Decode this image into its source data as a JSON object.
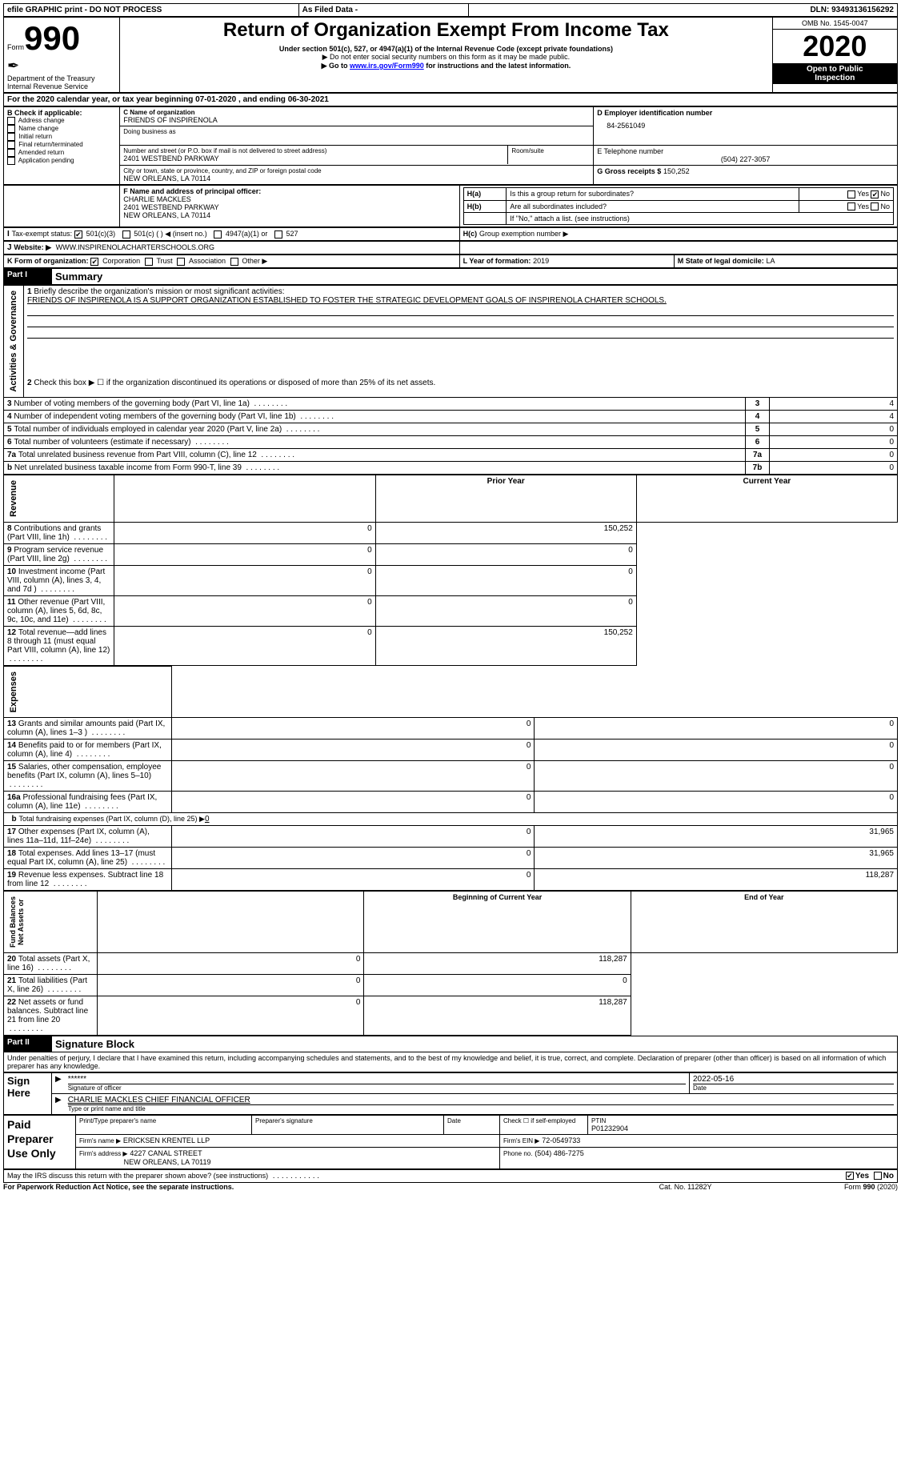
{
  "topbar": {
    "efile": "efile GRAPHIC print - DO NOT PROCESS",
    "asfiled": "As Filed Data -",
    "dln_label": "DLN:",
    "dln": "93493136156292"
  },
  "header": {
    "form_label": "Form",
    "form_no": "990",
    "dept": "Department of the Treasury\nInternal Revenue Service",
    "title": "Return of Organization Exempt From Income Tax",
    "sub1": "Under section 501(c), 527, or 4947(a)(1) of the Internal Revenue Code (except private foundations)",
    "sub2": "▶ Do not enter social security numbers on this form as it may be made public.",
    "sub3_pre": "▶ Go to ",
    "sub3_link": "www.irs.gov/Form990",
    "sub3_post": " for instructions and the latest information.",
    "omb": "OMB No. 1545-0047",
    "year": "2020",
    "inspect1": "Open to Public",
    "inspect2": "Inspection"
  },
  "A": {
    "text": "For the 2020 calendar year, or tax year beginning 07-01-2020   , and ending 06-30-2021"
  },
  "B": {
    "label": "B Check if applicable:",
    "items": [
      "Address change",
      "Name change",
      "Initial return",
      "Final return/terminated",
      "Amended return",
      "Application pending"
    ]
  },
  "C": {
    "name_label": "C Name of organization",
    "name": "FRIENDS OF INSPIRENOLA",
    "dba_label": "Doing business as",
    "addr_label": "Number and street (or P.O. box if mail is not delivered to street address)",
    "room_label": "Room/suite",
    "addr": "2401 WESTBEND PARKWAY",
    "city_label": "City or town, state or province, country, and ZIP or foreign postal code",
    "city": "NEW ORLEANS, LA  70114"
  },
  "D": {
    "label": "D Employer identification number",
    "val": "84-2561049"
  },
  "E": {
    "label": "E Telephone number",
    "val": "(504) 227-3057"
  },
  "G": {
    "label": "G Gross receipts $",
    "val": "150,252"
  },
  "F": {
    "label": "F  Name and address of principal officer:",
    "name": "CHARLIE MACKLES",
    "addr1": "2401 WESTBEND PARKWAY",
    "addr2": "NEW ORLEANS, LA  70114"
  },
  "H": {
    "a": "Is this a group return for subordinates?",
    "b": "Are all subordinates included?",
    "note": "If \"No,\" attach a list. (see instructions)",
    "c": "Group exemption number ▶",
    "ha": "H(a)",
    "hb": "H(b)",
    "hc": "H(c)",
    "yes": "Yes",
    "no": "No"
  },
  "I": {
    "label": "Tax-exempt status:",
    "o1": "501(c)(3)",
    "o2": "501(c) (   ) ◀ (insert no.)",
    "o3": "4947(a)(1) or",
    "o4": "527"
  },
  "J": {
    "label": "Website: ▶",
    "val": "WWW.INSPIRENOLACHARTERSCHOOLS.ORG"
  },
  "K": {
    "label": "K Form of organization:",
    "o1": "Corporation",
    "o2": "Trust",
    "o3": "Association",
    "o4": "Other ▶"
  },
  "L": {
    "label": "L Year of formation:",
    "val": "2019"
  },
  "M": {
    "label": "M State of legal domicile:",
    "val": "LA"
  },
  "part1": {
    "hdr": "Part I",
    "title": "Summary"
  },
  "summary": {
    "line1_label": "Briefly describe the organization's mission or most significant activities:",
    "line1_val": "FRIENDS OF INSPIRENOLA IS A SUPPORT ORGANIZATION ESTABLISHED TO FOSTER THE STRATEGIC DEVELOPMENT GOALS OF INSPIRENOLA CHARTER SCHOOLS.",
    "line2": "Check this box ▶ ☐  if the organization discontinued its operations or disposed of more than 25% of its net assets.",
    "governance_label": "Activities & Governance",
    "rows_g": [
      {
        "n": "3",
        "t": "Number of voting members of the governing body (Part VI, line 1a)",
        "c": "3",
        "v": "4"
      },
      {
        "n": "4",
        "t": "Number of independent voting members of the governing body (Part VI, line 1b)",
        "c": "4",
        "v": "4"
      },
      {
        "n": "5",
        "t": "Total number of individuals employed in calendar year 2020 (Part V, line 2a)",
        "c": "5",
        "v": "0"
      },
      {
        "n": "6",
        "t": "Total number of volunteers (estimate if necessary)",
        "c": "6",
        "v": "0"
      },
      {
        "n": "7a",
        "t": "Total unrelated business revenue from Part VIII, column (C), line 12",
        "c": "7a",
        "v": "0"
      },
      {
        "n": "b",
        "t": "Net unrelated business taxable income from Form 990-T, line 39",
        "c": "7b",
        "v": "0"
      }
    ],
    "col_py": "Prior Year",
    "col_cy": "Current Year",
    "revenue_label": "Revenue",
    "rows_r": [
      {
        "n": "8",
        "t": "Contributions and grants (Part VIII, line 1h)",
        "py": "0",
        "cy": "150,252"
      },
      {
        "n": "9",
        "t": "Program service revenue (Part VIII, line 2g)",
        "py": "0",
        "cy": "0"
      },
      {
        "n": "10",
        "t": "Investment income (Part VIII, column (A), lines 3, 4, and 7d )",
        "py": "0",
        "cy": "0"
      },
      {
        "n": "11",
        "t": "Other revenue (Part VIII, column (A), lines 5, 6d, 8c, 9c, 10c, and 11e)",
        "py": "0",
        "cy": "0"
      },
      {
        "n": "12",
        "t": "Total revenue—add lines 8 through 11 (must equal Part VIII, column (A), line 12)",
        "py": "0",
        "cy": "150,252"
      }
    ],
    "expenses_label": "Expenses",
    "rows_e": [
      {
        "n": "13",
        "t": "Grants and similar amounts paid (Part IX, column (A), lines 1–3 )",
        "py": "0",
        "cy": "0"
      },
      {
        "n": "14",
        "t": "Benefits paid to or for members (Part IX, column (A), line 4)",
        "py": "0",
        "cy": "0"
      },
      {
        "n": "15",
        "t": "Salaries, other compensation, employee benefits (Part IX, column (A), lines 5–10)",
        "py": "0",
        "cy": "0"
      },
      {
        "n": "16a",
        "t": "Professional fundraising fees (Part IX, column (A), line 11e)",
        "py": "0",
        "cy": "0"
      }
    ],
    "line16b_pre": "Total fundraising expenses (Part IX, column (D), line 25) ▶",
    "line16b_val": "0",
    "rows_e2": [
      {
        "n": "17",
        "t": "Other expenses (Part IX, column (A), lines 11a–11d, 11f–24e)",
        "py": "0",
        "cy": "31,965"
      },
      {
        "n": "18",
        "t": "Total expenses. Add lines 13–17 (must equal Part IX, column (A), line 25)",
        "py": "0",
        "cy": "31,965"
      },
      {
        "n": "19",
        "t": "Revenue less expenses. Subtract line 18 from line 12",
        "py": "0",
        "cy": "118,287"
      }
    ],
    "na_label": "Net Assets or\nFund Balances",
    "col_bcy": "Beginning of Current Year",
    "col_eoy": "End of Year",
    "rows_n": [
      {
        "n": "20",
        "t": "Total assets (Part X, line 16)",
        "py": "0",
        "cy": "118,287"
      },
      {
        "n": "21",
        "t": "Total liabilities (Part X, line 26)",
        "py": "0",
        "cy": "0"
      },
      {
        "n": "22",
        "t": "Net assets or fund balances. Subtract line 21 from line 20",
        "py": "0",
        "cy": "118,287"
      }
    ]
  },
  "part2": {
    "hdr": "Part II",
    "title": "Signature Block",
    "decl": "Under penalties of perjury, I declare that I have examined this return, including accompanying schedules and statements, and to the best of my knowledge and belief, it is true, correct, and complete. Declaration of preparer (other than officer) is based on all information of which preparer has any knowledge."
  },
  "sign": {
    "here": "Sign Here",
    "stars": "******",
    "sig_label": "Signature of officer",
    "date": "2022-05-16",
    "date_label": "Date",
    "name": "CHARLIE MACKLES  CHIEF FINANCIAL OFFICER",
    "name_label": "Type or print name and title"
  },
  "preparer": {
    "label": "Paid Preparer Use Only",
    "c1": "Print/Type preparer's name",
    "c2": "Preparer's signature",
    "c3": "Date",
    "self": "Check ☐ if self-employed",
    "ptin_label": "PTIN",
    "ptin": "P01232904",
    "firm_label": "Firm's name   ▶",
    "firm": "ERICKSEN KRENTEL LLP",
    "ein_label": "Firm's EIN ▶",
    "ein": "72-0549733",
    "addr_label": "Firm's address ▶",
    "addr1": "4227 CANAL STREET",
    "addr2": "NEW ORLEANS, LA  70119",
    "phone_label": "Phone no.",
    "phone": "(504) 486-7275"
  },
  "footer": {
    "discuss": "May the IRS discuss this return with the preparer shown above? (see instructions)",
    "yes": "Yes",
    "no": "No",
    "paperwork": "For Paperwork Reduction Act Notice, see the separate instructions.",
    "cat": "Cat. No. 11282Y",
    "form": "Form 990 (2020)"
  }
}
